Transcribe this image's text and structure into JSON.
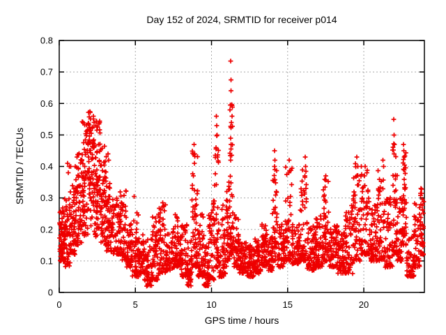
{
  "title": "Day 152 of 2024, SRMTID for receiver p014",
  "colors": {
    "marker": "#ee0000",
    "grid": "#a8a8a8",
    "axis": "#000000",
    "background": "#ffffff"
  },
  "chart_data": {
    "type": "scatter",
    "title": "Day 152 of 2024, SRMTID for receiver p014",
    "xlabel": "GPS time / hours",
    "ylabel": "SRMTID / TECUs",
    "xlim": [
      0,
      23.98
    ],
    "ylim": [
      0,
      0.8
    ],
    "x_ticks": [
      0,
      5,
      10,
      15,
      20
    ],
    "x_tick_labels": [
      "0",
      "5",
      "10",
      "15",
      "20"
    ],
    "y_ticks": [
      0,
      0.1,
      0.2,
      0.3,
      0.4,
      0.5,
      0.6,
      0.7,
      0.8
    ],
    "y_tick_labels": [
      "0",
      "0.1",
      "0.2",
      "0.3",
      "0.4",
      "0.5",
      "0.6",
      "0.7",
      "0.8"
    ],
    "grid": true,
    "legend": "none",
    "marker": "plus",
    "series_name": "SRMTID",
    "seed": 20240152,
    "envelope_segments": [
      [
        0.0,
        0.3,
        50,
        0.1,
        0.27,
        1.5
      ],
      [
        0.3,
        0.7,
        60,
        0.08,
        0.3,
        1.6
      ],
      [
        0.7,
        1.1,
        55,
        0.12,
        0.34,
        1.5
      ],
      [
        1.1,
        1.5,
        60,
        0.15,
        0.45,
        1.3
      ],
      [
        1.5,
        1.9,
        65,
        0.18,
        0.55,
        1.2
      ],
      [
        1.9,
        2.3,
        70,
        0.2,
        0.58,
        1.1
      ],
      [
        2.3,
        2.7,
        65,
        0.17,
        0.55,
        1.2
      ],
      [
        2.7,
        3.1,
        60,
        0.15,
        0.47,
        1.3
      ],
      [
        3.1,
        3.5,
        55,
        0.13,
        0.35,
        1.5
      ],
      [
        3.5,
        4.0,
        55,
        0.12,
        0.3,
        1.6
      ],
      [
        4.0,
        4.4,
        50,
        0.1,
        0.33,
        1.7
      ],
      [
        4.4,
        4.8,
        50,
        0.08,
        0.22,
        1.7
      ],
      [
        4.8,
        5.2,
        50,
        0.05,
        0.33,
        1.9
      ],
      [
        5.2,
        5.6,
        45,
        0.06,
        0.2,
        1.7
      ],
      [
        5.6,
        6.1,
        55,
        0.02,
        0.18,
        1.6
      ],
      [
        6.1,
        6.5,
        50,
        0.04,
        0.26,
        1.8
      ],
      [
        6.5,
        7.0,
        55,
        0.06,
        0.29,
        1.8
      ],
      [
        7.0,
        7.5,
        50,
        0.07,
        0.2,
        1.6
      ],
      [
        7.5,
        8.0,
        55,
        0.08,
        0.25,
        1.7
      ],
      [
        8.0,
        8.4,
        50,
        0.05,
        0.22,
        1.7
      ],
      [
        8.4,
        8.7,
        40,
        0.02,
        0.18,
        1.6
      ],
      [
        8.7,
        9.1,
        55,
        0.08,
        0.45,
        2.0
      ],
      [
        9.1,
        9.5,
        45,
        0.05,
        0.25,
        1.8
      ],
      [
        9.5,
        9.8,
        40,
        0.02,
        0.15,
        1.5
      ],
      [
        9.8,
        10.2,
        50,
        0.04,
        0.3,
        1.8
      ],
      [
        10.2,
        10.5,
        45,
        0.08,
        0.5,
        2.1
      ],
      [
        10.5,
        11.0,
        55,
        0.05,
        0.3,
        1.9
      ],
      [
        11.0,
        11.2,
        35,
        0.1,
        0.35,
        1.8
      ],
      [
        11.2,
        11.4,
        40,
        0.12,
        0.6,
        2.2
      ],
      [
        11.4,
        11.8,
        45,
        0.08,
        0.25,
        1.6
      ],
      [
        11.8,
        12.3,
        55,
        0.06,
        0.16,
        1.4
      ],
      [
        12.3,
        12.8,
        55,
        0.05,
        0.15,
        1.4
      ],
      [
        12.8,
        13.3,
        55,
        0.06,
        0.17,
        1.4
      ],
      [
        13.3,
        13.7,
        50,
        0.08,
        0.22,
        1.5
      ],
      [
        13.7,
        14.0,
        40,
        0.07,
        0.18,
        1.5
      ],
      [
        14.0,
        14.3,
        40,
        0.1,
        0.4,
        2.1
      ],
      [
        14.3,
        14.8,
        50,
        0.08,
        0.22,
        1.6
      ],
      [
        14.8,
        15.3,
        55,
        0.1,
        0.4,
        2.0
      ],
      [
        15.3,
        15.8,
        55,
        0.09,
        0.22,
        1.5
      ],
      [
        15.8,
        16.3,
        55,
        0.1,
        0.4,
        2.0
      ],
      [
        16.3,
        16.8,
        55,
        0.07,
        0.22,
        1.5
      ],
      [
        16.8,
        17.3,
        55,
        0.08,
        0.25,
        1.6
      ],
      [
        17.3,
        17.7,
        50,
        0.1,
        0.36,
        1.9
      ],
      [
        17.7,
        18.3,
        60,
        0.08,
        0.22,
        1.5
      ],
      [
        18.3,
        18.8,
        55,
        0.06,
        0.2,
        1.5
      ],
      [
        18.8,
        19.3,
        55,
        0.06,
        0.28,
        1.7
      ],
      [
        19.3,
        19.8,
        55,
        0.1,
        0.42,
        1.9
      ],
      [
        19.8,
        20.4,
        60,
        0.12,
        0.4,
        1.8
      ],
      [
        20.4,
        20.9,
        55,
        0.1,
        0.28,
        1.6
      ],
      [
        20.9,
        21.4,
        55,
        0.1,
        0.4,
        1.8
      ],
      [
        21.4,
        21.9,
        55,
        0.08,
        0.3,
        1.7
      ],
      [
        21.9,
        22.2,
        45,
        0.12,
        0.48,
        1.8
      ],
      [
        22.2,
        22.5,
        40,
        0.1,
        0.3,
        1.6
      ],
      [
        22.5,
        22.8,
        45,
        0.15,
        0.45,
        1.5
      ],
      [
        22.8,
        23.3,
        50,
        0.05,
        0.18,
        1.4
      ],
      [
        23.3,
        23.7,
        45,
        0.08,
        0.3,
        1.7
      ],
      [
        23.7,
        23.95,
        40,
        0.12,
        0.33,
        1.6
      ]
    ],
    "outliers": [
      [
        0.55,
        0.41
      ],
      [
        0.6,
        0.38
      ],
      [
        0.66,
        0.4
      ],
      [
        0.75,
        0.4
      ],
      [
        1.05,
        0.4
      ],
      [
        3.2,
        0.44
      ],
      [
        3.25,
        0.42
      ],
      [
        8.85,
        0.47
      ],
      [
        8.9,
        0.44
      ],
      [
        8.88,
        0.41
      ],
      [
        10.33,
        0.56
      ],
      [
        10.35,
        0.53
      ],
      [
        10.36,
        0.5
      ],
      [
        10.3,
        0.46
      ],
      [
        10.38,
        0.43
      ],
      [
        11.26,
        0.735
      ],
      [
        11.28,
        0.675
      ],
      [
        11.27,
        0.64
      ],
      [
        11.3,
        0.54
      ],
      [
        11.25,
        0.49
      ],
      [
        11.27,
        0.47
      ],
      [
        11.29,
        0.455
      ],
      [
        11.26,
        0.42
      ],
      [
        14.15,
        0.45
      ],
      [
        14.16,
        0.42
      ],
      [
        14.14,
        0.4
      ],
      [
        14.17,
        0.39
      ],
      [
        15.1,
        0.42
      ],
      [
        15.08,
        0.38
      ],
      [
        16.15,
        0.43
      ],
      [
        16.17,
        0.4
      ],
      [
        16.13,
        0.37
      ],
      [
        17.5,
        0.37
      ],
      [
        19.55,
        0.43
      ],
      [
        19.6,
        0.4
      ],
      [
        20.1,
        0.4
      ],
      [
        20.05,
        0.37
      ],
      [
        21.25,
        0.42
      ],
      [
        21.3,
        0.4
      ],
      [
        21.97,
        0.55
      ],
      [
        22.0,
        0.5
      ],
      [
        22.02,
        0.47
      ],
      [
        21.98,
        0.44
      ],
      [
        22.6,
        0.47
      ],
      [
        22.62,
        0.45
      ],
      [
        22.65,
        0.43
      ],
      [
        23.75,
        0.33
      ]
    ]
  }
}
